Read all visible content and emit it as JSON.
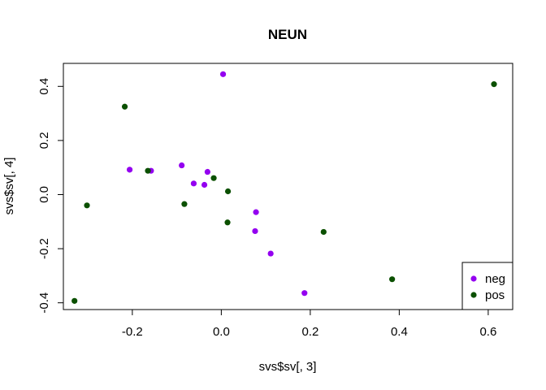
{
  "chart_data": {
    "type": "scatter",
    "title": "NEUN",
    "xlabel": "svs$sv[, 3]",
    "ylabel": "svs$sv[, 4]",
    "xlim": [
      -0.355,
      0.655
    ],
    "ylim": [
      -0.425,
      0.485
    ],
    "x_ticks": [
      -0.2,
      0.0,
      0.2,
      0.4,
      0.6
    ],
    "x_tick_labels": [
      "-0.2",
      "0.0",
      "0.2",
      "0.4",
      "0.6"
    ],
    "y_ticks": [
      -0.4,
      -0.2,
      0.0,
      0.2,
      0.4
    ],
    "y_tick_labels": [
      "-0.4",
      "-0.2",
      "0.0",
      "0.2",
      "0.4"
    ],
    "grid": false,
    "legend_position": "bottom-right",
    "series": [
      {
        "name": "neg",
        "color": "#9400f0",
        "points": [
          {
            "x": 0.004,
            "y": 0.445
          },
          {
            "x": -0.206,
            "y": 0.092
          },
          {
            "x": -0.158,
            "y": 0.088
          },
          {
            "x": -0.089,
            "y": 0.108
          },
          {
            "x": -0.062,
            "y": 0.041
          },
          {
            "x": -0.038,
            "y": 0.036
          },
          {
            "x": -0.031,
            "y": 0.084
          },
          {
            "x": 0.078,
            "y": -0.065
          },
          {
            "x": 0.076,
            "y": -0.135
          },
          {
            "x": 0.111,
            "y": -0.218
          },
          {
            "x": 0.187,
            "y": -0.364
          }
        ]
      },
      {
        "name": "pos",
        "color": "#0b5000",
        "points": [
          {
            "x": -0.217,
            "y": 0.325
          },
          {
            "x": -0.165,
            "y": 0.088
          },
          {
            "x": -0.083,
            "y": -0.035
          },
          {
            "x": -0.017,
            "y": 0.061
          },
          {
            "x": 0.015,
            "y": 0.012
          },
          {
            "x": 0.014,
            "y": -0.103
          },
          {
            "x": -0.302,
            "y": -0.04
          },
          {
            "x": -0.33,
            "y": -0.393
          },
          {
            "x": 0.23,
            "y": -0.138
          },
          {
            "x": 0.384,
            "y": -0.313
          },
          {
            "x": 0.613,
            "y": 0.408
          }
        ]
      }
    ]
  }
}
